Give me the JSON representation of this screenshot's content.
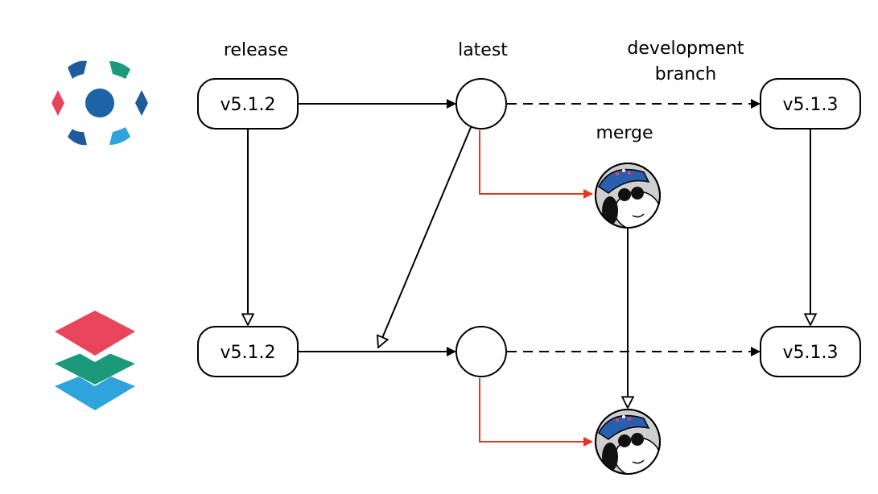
{
  "headers": {
    "release": "release",
    "latest": "latest",
    "development_line1": "development",
    "development_line2": "branch",
    "merge": "merge"
  },
  "nodes": {
    "top_release": "v5.1.2",
    "top_dev": "v5.1.3",
    "bottom_release": "v5.1.2",
    "bottom_dev": "v5.1.3"
  },
  "rows": {
    "top_logo": "dots-logo-icon",
    "bottom_logo": "stacked-layers-logo-icon"
  },
  "colors": {
    "merge_arrow": "#e8341c",
    "stroke": "#000000",
    "logo_blue": "#1e63a8",
    "logo_dark_blue": "#1f5a9c",
    "logo_green": "#1a9a7a",
    "logo_red": "#e8445a",
    "logo_light_blue": "#2ea3dc"
  }
}
